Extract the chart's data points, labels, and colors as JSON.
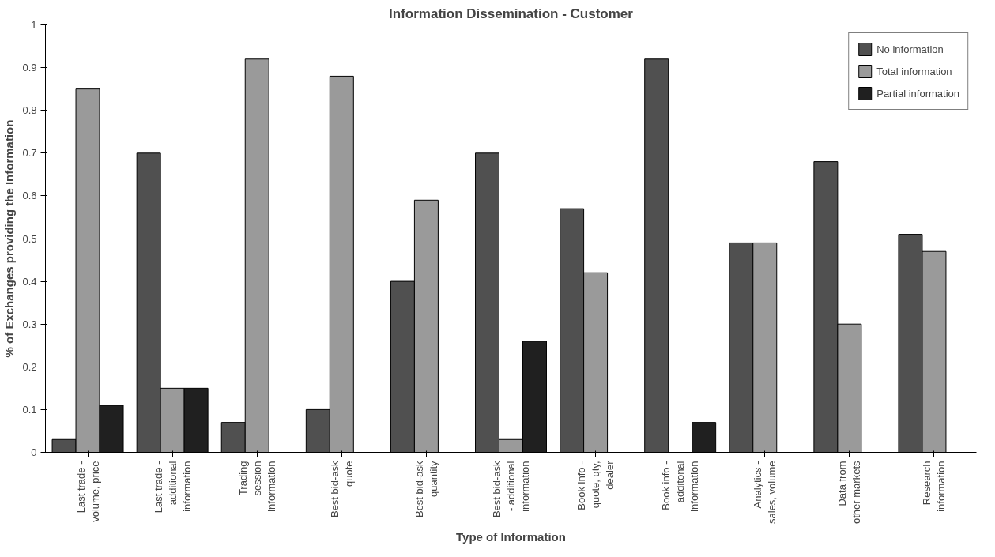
{
  "chart_data": {
    "type": "bar",
    "title": "Information Dissemination - Customer",
    "xlabel": "Type of Information",
    "ylabel": "% of Exchanges providing the Information",
    "categories": [
      "Last trade - volume, price",
      "Last trade - additional information",
      "Trading session information",
      "Best bid-ask quote",
      "Best bid-ask quantity",
      "Best bid-ask - additional information",
      "Book info - quote, qty, dealer",
      "Book info - additonal information",
      "Analytics - sales, volume",
      "Data from other markets",
      "Research information"
    ],
    "series": [
      {
        "name": "No information",
        "color": "#505050",
        "values": [
          0.03,
          0.7,
          0.07,
          0.1,
          0.4,
          0.7,
          0.57,
          0.92,
          0.49,
          0.68,
          0.51
        ]
      },
      {
        "name": "Total information",
        "color": "#9a9a9a",
        "values": [
          0.85,
          0.15,
          0.92,
          0.88,
          0.59,
          0.03,
          0.42,
          null,
          0.49,
          0.3,
          0.47
        ]
      },
      {
        "name": "Partial information",
        "color": "#202020",
        "values": [
          0.11,
          0.15,
          null,
          null,
          null,
          0.26,
          null,
          0.07,
          null,
          null,
          null
        ]
      }
    ],
    "ylim": [
      0,
      1
    ],
    "yticks": [
      0,
      0.1,
      0.2,
      0.3,
      0.4,
      0.5,
      0.6,
      0.7,
      0.8,
      0.9,
      1
    ],
    "grid": false,
    "legend": "top right"
  }
}
